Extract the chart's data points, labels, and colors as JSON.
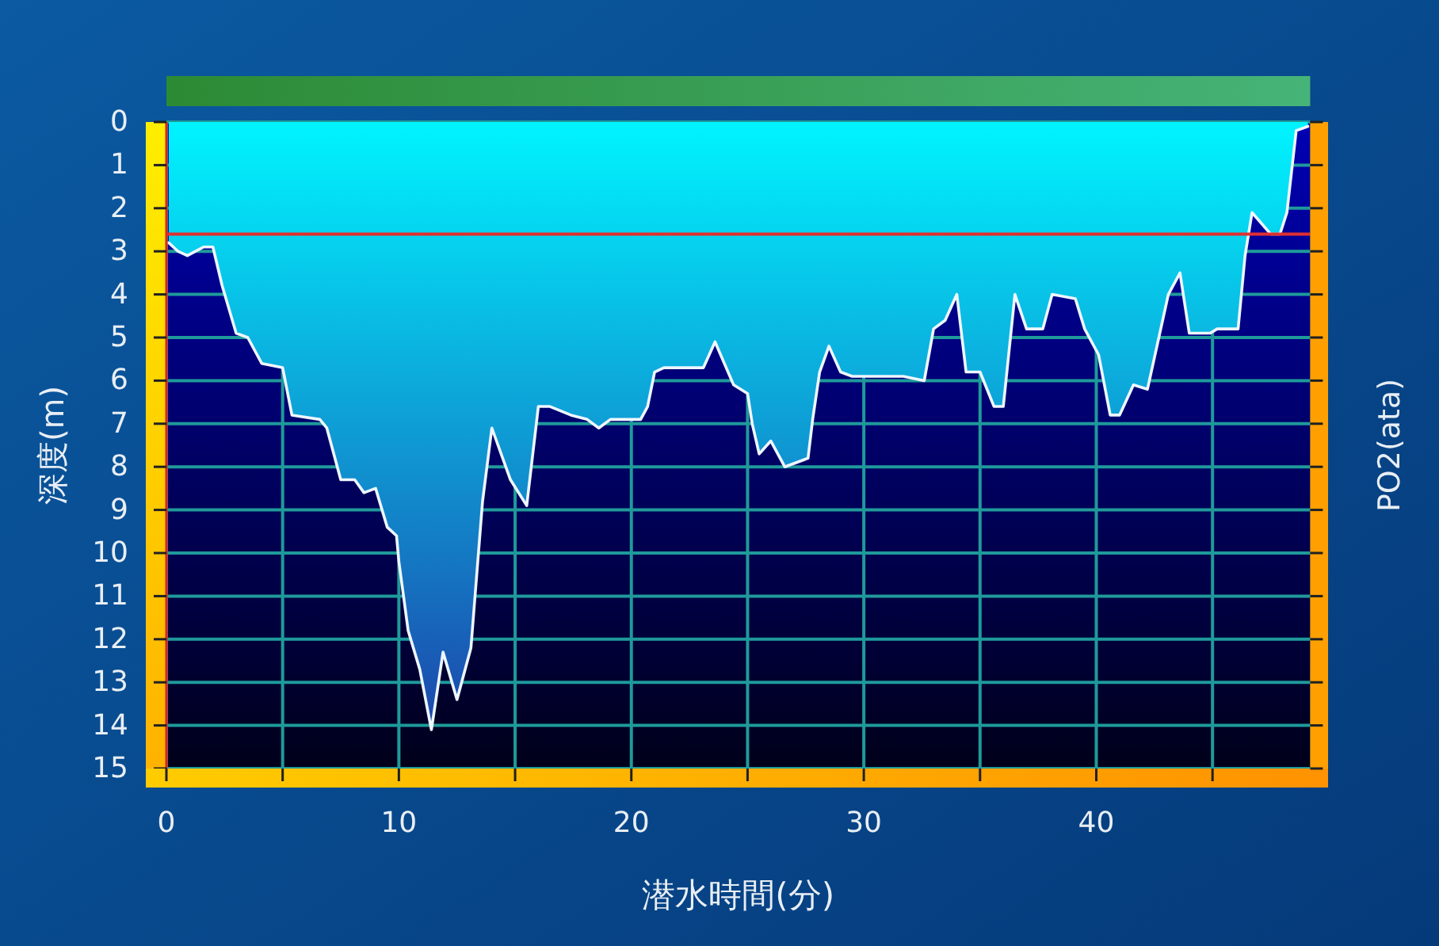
{
  "chart_data": {
    "type": "area",
    "xlabel": "潜水時間(分)",
    "ylabel": "深度(m)",
    "y2label": "PO2(ata)",
    "x": [
      0.1,
      0.5,
      0.9,
      1.6,
      2.0,
      2.4,
      3.0,
      3.5,
      4.1,
      5.0,
      5.4,
      6.6,
      6.9,
      7.5,
      8.1,
      8.5,
      9.0,
      9.5,
      9.9,
      10.0,
      10.4,
      10.9,
      11.4,
      11.9,
      12.5,
      13.1,
      13.6,
      14.0,
      14.8,
      15.5,
      16.0,
      16.5,
      17.4,
      18.1,
      18.6,
      19.1,
      20.4,
      20.7,
      21.0,
      21.4,
      23.1,
      23.6,
      24.4,
      25.0,
      25.2,
      25.5,
      26.0,
      26.6,
      27.6,
      27.8,
      28.1,
      28.5,
      29.0,
      29.5,
      31.7,
      32.6,
      33.0,
      33.5,
      34.0,
      34.4,
      35.0,
      35.6,
      36.0,
      36.5,
      37.0,
      37.7,
      38.1,
      39.1,
      39.5,
      40.1,
      40.6,
      41.0,
      41.6,
      42.2,
      43.1,
      43.6,
      44.0,
      44.9,
      45.2,
      46.1,
      46.4,
      46.7,
      47.5,
      47.9,
      48.2,
      48.6,
      49.1
    ],
    "values": [
      2.8,
      3.0,
      3.1,
      2.9,
      2.9,
      3.8,
      4.9,
      5.0,
      5.6,
      5.7,
      6.8,
      6.9,
      7.1,
      8.3,
      8.3,
      8.6,
      8.5,
      9.4,
      9.6,
      10.2,
      11.8,
      12.7,
      14.1,
      12.3,
      13.4,
      12.2,
      8.8,
      7.1,
      8.3,
      8.9,
      6.6,
      6.6,
      6.8,
      6.9,
      7.1,
      6.9,
      6.9,
      6.6,
      5.8,
      5.7,
      5.7,
      5.1,
      6.1,
      6.3,
      7.0,
      7.7,
      7.4,
      8.0,
      7.8,
      6.9,
      5.8,
      5.2,
      5.8,
      5.9,
      5.9,
      6.0,
      4.8,
      4.6,
      4.0,
      5.8,
      5.8,
      6.6,
      6.6,
      4.0,
      4.8,
      4.8,
      4.0,
      4.1,
      4.8,
      5.4,
      6.8,
      6.8,
      6.1,
      6.2,
      4.0,
      3.5,
      4.9,
      4.9,
      4.8,
      4.8,
      3.1,
      2.1,
      2.6,
      2.6,
      2.1,
      0.2,
      0.1
    ],
    "color": "#00f4ff",
    "xlim": [
      0,
      49.2
    ],
    "ylim": [
      15,
      0
    ],
    "xticks": [
      0,
      {
        "value": 5,
        "label": null
      },
      10,
      {
        "value": 15,
        "label": null
      },
      20,
      {
        "value": 25,
        "label": null
      },
      30,
      {
        "value": 35,
        "label": null
      },
      40,
      {
        "value": 45,
        "label": null
      }
    ],
    "yticks": [
      0,
      1,
      2,
      3,
      4,
      5,
      6,
      7,
      8,
      9,
      10,
      11,
      12,
      13,
      14,
      15
    ],
    "grid": true,
    "ref_lines": [
      {
        "axis": "y",
        "value": 2.6,
        "color": "#e03030"
      }
    ]
  }
}
